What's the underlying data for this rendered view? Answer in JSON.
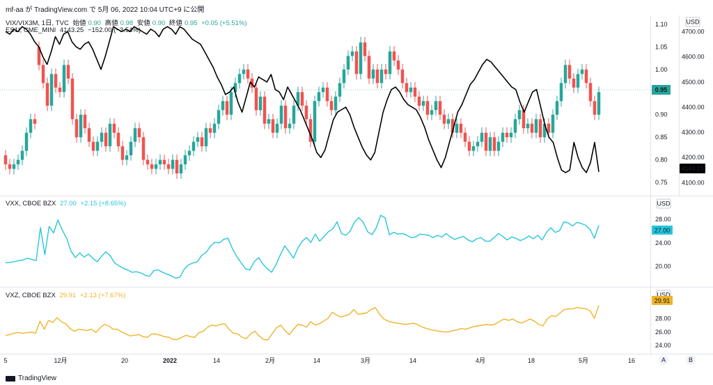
{
  "header": {
    "user_line": "mf-aa が TradingView.com で 5月 06, 2022 10:04 UTC+9 に公開"
  },
  "pane1": {
    "symbol": "VIX/VIX3M, 1日, TVC",
    "o_label": "始値",
    "o_val": "0.90",
    "h_label": "高値",
    "h_val": "0.98",
    "l_label": "安値",
    "l_val": "0.90",
    "c_label": "終値",
    "c_val": "0.95",
    "chg": "+0.05 (+5.51%)",
    "overlay_symbol": "ES1!, CME_MINI",
    "overlay_val": "4143.25",
    "overlay_chg": "−152.00 (−3.54%)"
  },
  "pane2": {
    "symbol": "VXX, CBOE BZX",
    "val": "27.00",
    "chg": "+2.15 (+8.65%)"
  },
  "pane3": {
    "symbol": "VXZ, CBOE BZX",
    "val": "29.91",
    "chg": "+2.13 (+7.67%)"
  },
  "footer": {
    "brand": "TradingView"
  },
  "colors": {
    "up": "#26a69a",
    "down": "#ef5350",
    "es": "#000000",
    "vxx": "#26c6da",
    "vxz": "#f0b429"
  },
  "chart_data": [
    {
      "type": "candlestick",
      "title": "VIX/VIX3M, 1日, TVC",
      "yticks": [
        0.75,
        0.8,
        0.85,
        0.9,
        0.95,
        1.0,
        1.05,
        1.1
      ],
      "ylim": [
        0.73,
        1.12
      ],
      "last_price_label": "0.95",
      "currency": "USD",
      "closes": [
        0.79,
        0.78,
        0.79,
        0.8,
        0.82,
        0.86,
        0.89,
        0.88,
        1.01,
        0.97,
        0.92,
        0.99,
        0.96,
        0.95,
        1.01,
        0.98,
        0.89,
        0.85,
        0.9,
        0.87,
        0.84,
        0.82,
        0.84,
        0.86,
        0.83,
        0.88,
        0.86,
        0.83,
        0.8,
        0.81,
        0.84,
        0.87,
        0.85,
        0.8,
        0.79,
        0.78,
        0.79,
        0.8,
        0.79,
        0.78,
        0.8,
        0.77,
        0.79,
        0.81,
        0.82,
        0.84,
        0.85,
        0.83,
        0.87,
        0.86,
        0.88,
        0.91,
        0.93,
        0.9,
        0.95,
        0.97,
        0.99,
        1.0,
        0.98,
        0.96,
        0.91,
        0.94,
        0.88,
        0.89,
        0.86,
        0.88,
        0.92,
        0.87,
        0.88,
        0.92,
        0.95,
        0.92,
        0.89,
        0.84,
        0.93,
        0.95,
        0.96,
        0.93,
        0.91,
        0.94,
        0.97,
        1.0,
        1.03,
        1.04,
        0.99,
        1.06,
        1.03,
        0.98,
        1.0,
        0.97,
        1.0,
        0.99,
        1.04,
        1.02,
        1.0,
        0.97,
        0.95,
        0.96,
        0.94,
        0.92,
        0.93,
        0.9,
        0.91,
        0.93,
        0.9,
        0.88,
        0.89,
        0.86,
        0.88,
        0.86,
        0.84,
        0.82,
        0.83,
        0.84,
        0.86,
        0.82,
        0.85,
        0.82,
        0.84,
        0.86,
        0.85,
        0.86,
        0.89,
        0.91,
        0.87,
        0.88,
        0.86,
        0.89,
        0.85,
        0.88,
        0.86,
        0.9,
        0.93,
        0.97,
        1.01,
        0.98,
        0.96,
        0.99,
        1.0,
        0.97,
        0.93,
        0.9,
        0.95
      ],
      "opens": [
        0.81,
        0.79,
        0.78,
        0.79,
        0.8,
        0.82,
        0.86,
        0.89,
        1.05,
        1.01,
        0.97,
        0.92,
        0.99,
        0.96,
        0.95,
        1.01,
        0.98,
        0.89,
        0.85,
        0.9,
        0.87,
        0.84,
        0.82,
        0.84,
        0.86,
        0.83,
        0.88,
        0.86,
        0.83,
        0.8,
        0.81,
        0.84,
        0.87,
        0.85,
        0.8,
        0.79,
        0.78,
        0.79,
        0.8,
        0.79,
        0.78,
        0.8,
        0.77,
        0.79,
        0.81,
        0.82,
        0.84,
        0.85,
        0.83,
        0.87,
        0.86,
        0.88,
        0.91,
        0.93,
        0.9,
        0.95,
        0.97,
        0.99,
        1.0,
        0.98,
        0.96,
        0.91,
        0.94,
        0.88,
        0.89,
        0.86,
        0.88,
        0.92,
        0.87,
        0.88,
        0.92,
        0.95,
        0.92,
        0.89,
        0.84,
        0.93,
        0.95,
        0.96,
        0.93,
        0.91,
        0.94,
        0.97,
        1.0,
        1.03,
        1.04,
        0.99,
        1.06,
        1.03,
        0.98,
        1.0,
        0.97,
        1.0,
        0.99,
        1.04,
        1.02,
        1.0,
        0.97,
        0.95,
        0.96,
        0.94,
        0.92,
        0.93,
        0.9,
        0.91,
        0.93,
        0.9,
        0.88,
        0.89,
        0.86,
        0.88,
        0.86,
        0.84,
        0.82,
        0.83,
        0.84,
        0.86,
        0.82,
        0.85,
        0.82,
        0.84,
        0.86,
        0.85,
        0.86,
        0.89,
        0.91,
        0.87,
        0.88,
        0.86,
        0.89,
        0.85,
        0.88,
        0.86,
        0.9,
        0.93,
        0.97,
        1.01,
        0.98,
        0.96,
        0.99,
        1.0,
        0.97,
        0.93,
        0.9
      ]
    },
    {
      "type": "line",
      "title": "ES1!, CME_MINI",
      "yticks": [
        4100,
        4200,
        4300,
        4400,
        4500,
        4600,
        4700
      ],
      "ylim": [
        4065,
        4765
      ],
      "last_price_label": "4143.25",
      "values": [
        4700,
        4690,
        4710,
        4700,
        4720,
        4710,
        4690,
        4660,
        4640,
        4600,
        4570,
        4620,
        4680,
        4650,
        4690,
        4700,
        4660,
        4640,
        4630,
        4650,
        4660,
        4630,
        4590,
        4550,
        4600,
        4660,
        4720,
        4710,
        4700,
        4710,
        4700,
        4720,
        4710,
        4700,
        4690,
        4710,
        4700,
        4680,
        4710,
        4720,
        4710,
        4690,
        4720,
        4710,
        4690,
        4670,
        4660,
        4650,
        4620,
        4590,
        4560,
        4520,
        4490,
        4450,
        4460,
        4480,
        4420,
        4380,
        4440,
        4500,
        4480,
        4520,
        4510,
        4500,
        4530,
        4470,
        4460,
        4430,
        4480,
        4450,
        4420,
        4390,
        4350,
        4310,
        4270,
        4220,
        4200,
        4230,
        4290,
        4350,
        4380,
        4390,
        4400,
        4370,
        4320,
        4280,
        4240,
        4210,
        4190,
        4220,
        4300,
        4380,
        4430,
        4470,
        4480,
        4460,
        4430,
        4410,
        4400,
        4390,
        4360,
        4320,
        4270,
        4230,
        4190,
        4160,
        4200,
        4260,
        4320,
        4380,
        4410,
        4450,
        4490,
        4510,
        4540,
        4570,
        4590,
        4580,
        4560,
        4540,
        4520,
        4500,
        4480,
        4470,
        4420,
        4380,
        4420,
        4460,
        4470,
        4400,
        4330,
        4280,
        4260,
        4200,
        4150,
        4140,
        4150,
        4260,
        4200,
        4160,
        4140,
        4180,
        4260,
        4143
      ]
    },
    {
      "type": "line",
      "title": "VXX, CBOE BZX",
      "yticks": [
        20.0,
        24.0,
        28.0
      ],
      "ylim": [
        17.0,
        29.8
      ],
      "last_price_label": "27.00",
      "currency": "USD",
      "values": [
        20.6,
        20.7,
        20.8,
        21.0,
        21.1,
        21.4,
        21.2,
        21.0,
        26.6,
        22.0,
        26.8,
        25.7,
        27.9,
        26.2,
        24.8,
        22.6,
        21.5,
        22.3,
        21.6,
        22.1,
        21.4,
        20.8,
        21.7,
        22.5,
        21.8,
        20.6,
        20.1,
        19.7,
        19.4,
        19.0,
        19.1,
        18.9,
        18.5,
        18.3,
        19.3,
        19.4,
        19.0,
        18.7,
        18.4,
        18.0,
        18.2,
        19.6,
        20.3,
        20.6,
        20.8,
        21.9,
        22.4,
        23.5,
        24.1,
        24.0,
        24.6,
        24.8,
        23.0,
        21.7,
        20.6,
        19.6,
        19.4,
        20.8,
        21.5,
        20.4,
        19.6,
        19.0,
        20.3,
        22.0,
        23.5,
        22.5,
        21.4,
        23.1,
        24.3,
        24.9,
        24.1,
        25.5,
        24.3,
        25.1,
        25.9,
        26.4,
        27.6,
        25.6,
        25.3,
        26.0,
        27.6,
        28.3,
        27.5,
        25.9,
        25.4,
        26.6,
        28.7,
        28.3,
        25.4,
        25.8,
        25.5,
        25.6,
        25.3,
        24.9,
        25.0,
        25.5,
        25.4,
        25.3,
        24.9,
        25.3,
        25.0,
        25.6,
        25.0,
        24.6,
        24.9,
        25.1,
        24.5,
        24.2,
        24.7,
        24.9,
        24.3,
        24.3,
        24.9,
        25.6,
        25.1,
        24.5,
        25.0,
        24.8,
        24.4,
        24.7,
        25.2,
        24.7,
        25.3,
        24.5,
        25.8,
        26.6,
        25.8,
        26.1,
        27.6,
        27.4,
        26.9,
        27.5,
        27.3,
        27.0,
        26.3,
        24.8,
        27.0
      ]
    },
    {
      "type": "line",
      "title": "VXZ, CBOE BZX",
      "yticks": [
        24.0,
        26.0,
        28.0
      ],
      "ylim": [
        23.1,
        30.8
      ],
      "last_price_label": "29.91",
      "currency": "USD",
      "values": [
        25.5,
        25.6,
        25.8,
        25.9,
        25.8,
        25.9,
        26.0,
        25.8,
        27.6,
        26.4,
        27.7,
        27.4,
        28.1,
        27.5,
        27.2,
        26.5,
        26.1,
        26.4,
        26.3,
        26.2,
        26.4,
        25.9,
        26.6,
        27.1,
        26.9,
        26.4,
        26.4,
        26.0,
        25.7,
        25.4,
        25.5,
        25.6,
        25.3,
        25.2,
        25.7,
        25.7,
        25.5,
        25.3,
        25.2,
        24.9,
        24.9,
        25.2,
        25.5,
        25.3,
        25.2,
        25.9,
        26.1,
        26.7,
        27.0,
        26.9,
        27.1,
        27.2,
        26.4,
        25.8,
        25.7,
        25.2,
        25.0,
        25.7,
        26.1,
        25.4,
        24.9,
        24.8,
        25.7,
        26.6,
        27.0,
        26.2,
        25.6,
        26.4,
        27.1,
        27.0,
        26.7,
        27.5,
        27.0,
        27.2,
        27.6,
        28.0,
        28.9,
        28.5,
        28.2,
        28.4,
        28.6,
        29.3,
        28.6,
        28.7,
        28.8,
        29.3,
        29.6,
        28.6,
        27.9,
        27.6,
        27.4,
        27.3,
        27.2,
        27.1,
        27.2,
        27.3,
        27.0,
        26.7,
        26.5,
        26.3,
        26.2,
        26.1,
        26.0,
        26.0,
        26.2,
        26.3,
        26.5,
        26.4,
        26.6,
        26.8,
        26.9,
        27.0,
        27.1,
        27.0,
        27.2,
        27.6,
        27.9,
        27.7,
        27.9,
        27.5,
        27.3,
        27.6,
        27.9,
        27.6,
        27.1,
        26.9,
        27.9,
        28.4,
        28.3,
        28.8,
        29.3,
        29.4,
        29.4,
        29.6,
        29.5,
        29.4,
        29.1,
        28.0,
        29.91
      ]
    }
  ],
  "xaxis": {
    "labels": [
      "5",
      "12月",
      "20",
      "2022",
      "14",
      "2月",
      "14",
      "3月",
      "14",
      "4月",
      "18",
      "5月",
      "16"
    ]
  },
  "controls": {
    "auto_label": "A",
    "b_label": "B"
  }
}
